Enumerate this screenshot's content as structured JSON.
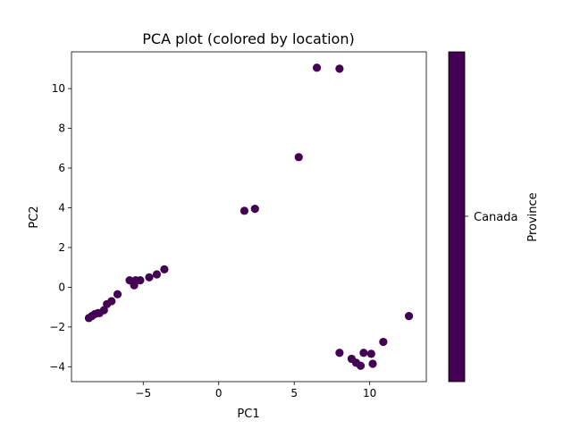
{
  "chart_data": {
    "type": "scatter",
    "title": "PCA plot (colored by location)",
    "xlabel": "PC1",
    "ylabel": "PC2",
    "xlim": [
      -9.75,
      13.75
    ],
    "ylim": [
      -4.75,
      11.85
    ],
    "xticks": [
      -5,
      0,
      5,
      10
    ],
    "yticks": [
      -4,
      -2,
      0,
      2,
      4,
      6,
      8,
      10
    ],
    "xtick_labels": [
      "−5",
      "0",
      "5",
      "10"
    ],
    "ytick_labels": [
      "−4",
      "−2",
      "0",
      "2",
      "4",
      "6",
      "8",
      "10"
    ],
    "grid": false,
    "marker_color": "#440154",
    "series": [
      {
        "x": [
          -8.6,
          -8.4,
          -8.2,
          -8.0,
          -7.9,
          -7.6,
          -7.4,
          -7.1,
          -6.7,
          -5.9,
          -5.6,
          -5.5,
          -5.2,
          -4.6,
          -4.1,
          -3.6,
          1.7,
          2.4,
          5.3,
          6.5,
          8.0,
          8.0,
          8.8,
          9.1,
          9.4,
          9.6,
          10.1,
          10.2,
          10.9,
          12.6
        ],
        "y": [
          -1.55,
          -1.45,
          -1.35,
          -1.3,
          -1.3,
          -1.15,
          -0.85,
          -0.7,
          -0.35,
          0.35,
          0.1,
          0.35,
          0.35,
          0.5,
          0.65,
          0.9,
          3.85,
          3.95,
          6.55,
          11.05,
          11.0,
          -3.3,
          -3.6,
          -3.8,
          -3.95,
          -3.3,
          -3.35,
          -3.85,
          -2.75,
          -1.45
        ]
      }
    ],
    "colorbar": {
      "label": "Province",
      "tick_labels": [
        "Canada"
      ],
      "color": "#440154"
    }
  }
}
